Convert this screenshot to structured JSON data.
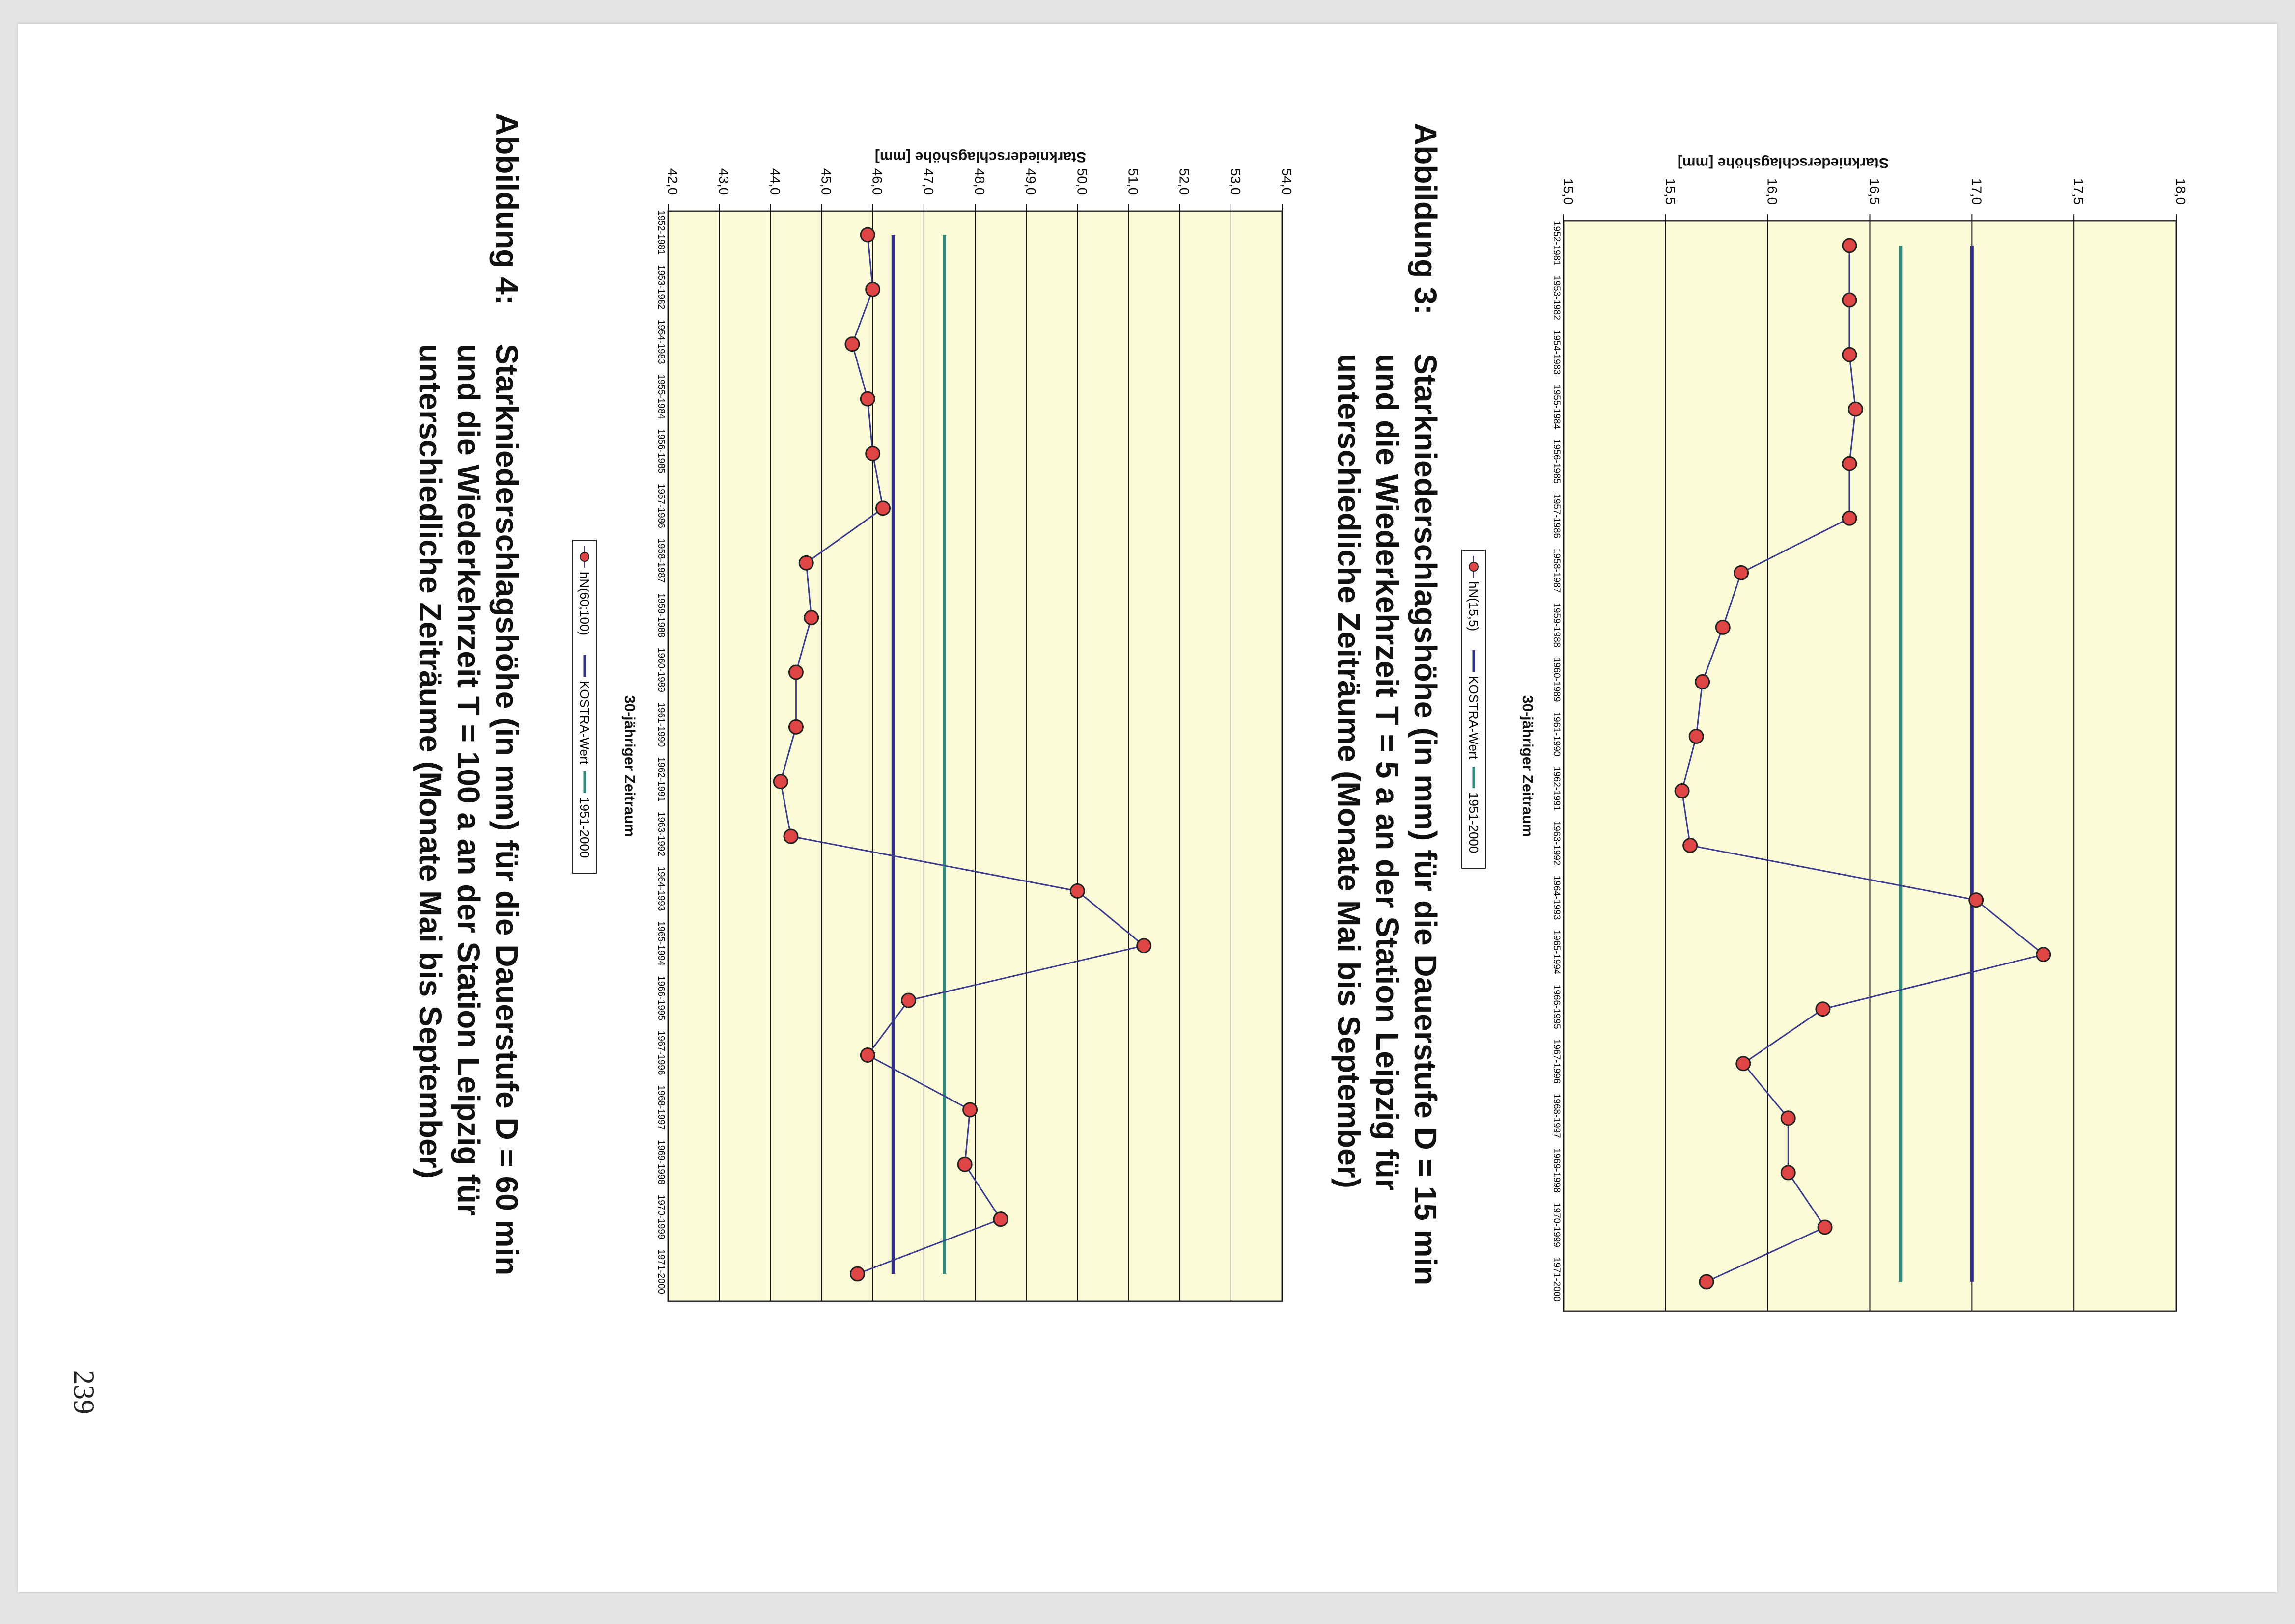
{
  "page_number": "239",
  "colors": {
    "plot_background": "#fbfbd8",
    "observed_line": "#3b3b8c",
    "observed_marker": "#e04545",
    "kostra_line": "#2f2f88",
    "reference_line": "#2e8a7a"
  },
  "x_categories": [
    "1952-1981",
    "1953-1982",
    "1954-1983",
    "1955-1984",
    "1956-1985",
    "1957-1986",
    "1958-1987",
    "1959-1988",
    "1960-1989",
    "1961-1990",
    "1962-1991",
    "1963-1992",
    "1964-1993",
    "1965-1994",
    "1966-1995",
    "1967-1996",
    "1968-1997",
    "1969-1998",
    "1970-1999",
    "1971-2000"
  ],
  "chart_data": [
    {
      "type": "line",
      "ylabel": "Starkniederschlagshöhe [mm]",
      "xlabel": "30-jähriger Zeitraum",
      "ylim": [
        15.0,
        18.0
      ],
      "yticks": [
        "15,0",
        "15,5",
        "16,0",
        "16,5",
        "17,0",
        "17,5",
        "18,0"
      ],
      "grid": true,
      "legend_position": "bottom",
      "series": [
        {
          "name": "hN(15,5)",
          "values": [
            16.4,
            16.4,
            16.4,
            16.43,
            16.4,
            16.4,
            15.87,
            15.78,
            15.68,
            15.65,
            15.58,
            15.62,
            17.02,
            17.35,
            16.27,
            15.88,
            16.1,
            16.1,
            16.28,
            15.7
          ]
        },
        {
          "name": "KOSTRA-Wert",
          "values": [
            17.0,
            17.0,
            17.0,
            17.0,
            17.0,
            17.0,
            17.0,
            17.0,
            17.0,
            17.0,
            17.0,
            17.0,
            17.0,
            17.0,
            17.0,
            17.0,
            17.0,
            17.0,
            17.0,
            17.0
          ]
        },
        {
          "name": "1951-2000",
          "values": [
            16.65,
            16.65,
            16.65,
            16.65,
            16.65,
            16.65,
            16.65,
            16.65,
            16.65,
            16.65,
            16.65,
            16.65,
            16.65,
            16.65,
            16.65,
            16.65,
            16.65,
            16.65,
            16.65,
            16.65
          ]
        }
      ],
      "caption": {
        "label": "Abbildung 3:",
        "lines": [
          "Starkniederschlagshöhe (in mm) für die Dauerstufe D = 15 min",
          "und die Wiederkehrzeit T = 5 a an der Station Leipzig für",
          "unterschiedliche Zeiträume (Monate Mai bis September)"
        ]
      }
    },
    {
      "type": "line",
      "ylabel": "Starkniederschlagshöhe [mm]",
      "xlabel": "30-jähriger Zeitraum",
      "ylim": [
        42.0,
        54.0
      ],
      "yticks": [
        "42,0",
        "43,0",
        "44,0",
        "45,0",
        "46,0",
        "47,0",
        "48,0",
        "49,0",
        "50,0",
        "51,0",
        "52,0",
        "53,0",
        "54,0"
      ],
      "grid": true,
      "legend_position": "bottom",
      "series": [
        {
          "name": "hN(60;100)",
          "values": [
            45.9,
            46.0,
            45.6,
            45.9,
            46.0,
            46.2,
            44.7,
            44.8,
            44.5,
            44.5,
            44.2,
            44.4,
            50.0,
            51.3,
            46.7,
            45.9,
            47.9,
            47.8,
            48.5,
            45.7
          ]
        },
        {
          "name": "KOSTRA-Wert",
          "values": [
            46.4,
            46.4,
            46.4,
            46.4,
            46.4,
            46.4,
            46.4,
            46.4,
            46.4,
            46.4,
            46.4,
            46.4,
            46.4,
            46.4,
            46.4,
            46.4,
            46.4,
            46.4,
            46.4,
            46.4
          ]
        },
        {
          "name": "1951-2000",
          "values": [
            47.4,
            47.4,
            47.4,
            47.4,
            47.4,
            47.4,
            47.4,
            47.4,
            47.4,
            47.4,
            47.4,
            47.4,
            47.4,
            47.4,
            47.4,
            47.4,
            47.4,
            47.4,
            47.4,
            47.4
          ]
        }
      ],
      "caption": {
        "label": "Abbildung 4:",
        "lines": [
          "Starkniederschlagshöhe (in mm) für die Dauerstufe D = 60 min",
          "und die Wiederkehrzeit T = 100 a an der Station Leipzig für",
          "unterschiedliche Zeiträume (Monate Mai bis September)"
        ]
      }
    }
  ]
}
